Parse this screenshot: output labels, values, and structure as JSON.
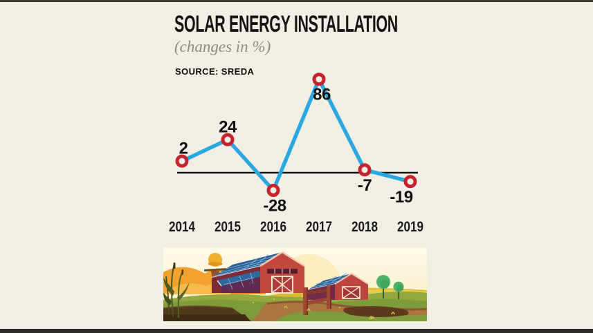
{
  "page": {
    "background": "#F1EEE6",
    "top_border_color": "#393831",
    "bottom_border_color": "#2B2A26"
  },
  "header": {
    "title": "SOLAR ENERGY INSTALLATION",
    "subtitle": "(changes in %)",
    "source": "SOURCE: SREDA"
  },
  "chart_data": {
    "type": "line",
    "categories": [
      "2014",
      "2015",
      "2016",
      "2017",
      "2018",
      "2019"
    ],
    "values": [
      2,
      24,
      -28,
      86,
      -7,
      -19
    ],
    "title": "SOLAR ENERGY INSTALLATION",
    "subtitle": "(changes in %)",
    "source": "SOURCE: SREDA",
    "xlabel": "",
    "ylabel": "",
    "ylim": [
      -45,
      100
    ],
    "grid": false,
    "legend": false,
    "zero_axis_line": true,
    "line_color": "#2AA8DF",
    "marker_stroke": "#C5242C",
    "marker_fill": "#F1EEE6",
    "axis_color": "#161616",
    "value_label_color": "#111111",
    "tick_label_color": "#1C1C1C",
    "label_positions": [
      "above",
      "above",
      "below",
      "below",
      "below",
      "below"
    ]
  },
  "illustration": {
    "description": "Farm landscape: two red barns with rooftop solar panels, scarecrow, trees, fence, fields"
  }
}
